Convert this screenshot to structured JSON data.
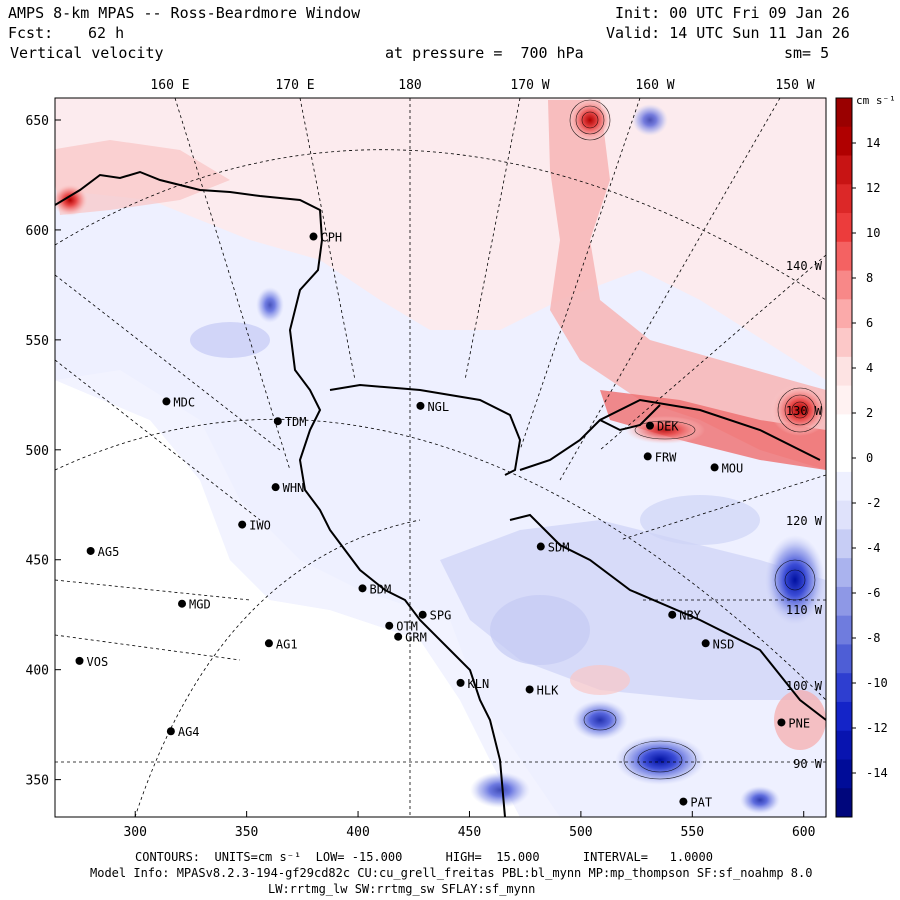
{
  "header": {
    "title": "AMPS 8-km MPAS -- Ross-Beardmore Window",
    "init": "Init: 00 UTC Fri 09 Jan 26",
    "fcst_label": "Fcst:",
    "fcst_value": "62 h",
    "valid": "Valid: 14 UTC Sun 11 Jan 26",
    "field": "Vertical velocity",
    "level": "at pressure =  700 hPa",
    "smooth": "sm= 5"
  },
  "map": {
    "lon_labels": [
      "160 E",
      "170 E",
      "180",
      "170 W",
      "160 W",
      "150 W"
    ],
    "y_ticks": [
      650,
      600,
      550,
      500,
      450,
      400,
      350
    ],
    "x_ticks": [
      300,
      350,
      400,
      450,
      500,
      550,
      600
    ],
    "x_range": [
      264,
      610
    ],
    "y_range": [
      333,
      660
    ],
    "inner_lon_labels": [
      "140 W",
      "130 W",
      "120 W",
      "110 W",
      "100 W",
      "90 W"
    ],
    "stations": [
      {
        "name": "CPH",
        "x": 380,
        "y": 597
      },
      {
        "name": "MDC",
        "x": 314,
        "y": 522
      },
      {
        "name": "TDM",
        "x": 364,
        "y": 513
      },
      {
        "name": "NGL",
        "x": 428,
        "y": 520
      },
      {
        "name": "WHN",
        "x": 363,
        "y": 483
      },
      {
        "name": "IWO",
        "x": 348,
        "y": 466
      },
      {
        "name": "AG5",
        "x": 280,
        "y": 454
      },
      {
        "name": "SDM",
        "x": 482,
        "y": 456
      },
      {
        "name": "BDM",
        "x": 402,
        "y": 437
      },
      {
        "name": "MGD",
        "x": 321,
        "y": 430
      },
      {
        "name": "SPG",
        "x": 429,
        "y": 425
      },
      {
        "name": "OTM",
        "x": 414,
        "y": 420
      },
      {
        "name": "GRM",
        "x": 418,
        "y": 415
      },
      {
        "name": "AG1",
        "x": 360,
        "y": 412
      },
      {
        "name": "VOS",
        "x": 275,
        "y": 404
      },
      {
        "name": "KLN",
        "x": 446,
        "y": 394
      },
      {
        "name": "HLK",
        "x": 477,
        "y": 391
      },
      {
        "name": "AG4",
        "x": 316,
        "y": 372
      },
      {
        "name": "FRW",
        "x": 530,
        "y": 497
      },
      {
        "name": "MOU",
        "x": 560,
        "y": 492
      },
      {
        "name": "DEK",
        "x": 531,
        "y": 511
      },
      {
        "name": "NBY",
        "x": 541,
        "y": 425
      },
      {
        "name": "NSD",
        "x": 556,
        "y": 412
      },
      {
        "name": "PNE",
        "x": 590,
        "y": 376
      },
      {
        "name": "PAT",
        "x": 546,
        "y": 340
      }
    ]
  },
  "colorbar": {
    "unit": "cm s⁻¹",
    "labels": [
      "14",
      "12",
      "10",
      "8",
      "6",
      "4",
      "2",
      "0",
      "-2",
      "-4",
      "-6",
      "-8",
      "-10",
      "-12",
      "-14"
    ],
    "colors": [
      "#9a0000",
      "#b00000",
      "#c81414",
      "#dc2828",
      "#ec3c3c",
      "#f46262",
      "#f88888",
      "#fbaaaa",
      "#fcc8c8",
      "#fde3e3",
      "#fff2f2",
      "#ffffff",
      "#ffffff",
      "#eef0ff",
      "#dfe2fb",
      "#c7cdf5",
      "#aab3ee",
      "#8e98e6",
      "#6f7cde",
      "#4e5ed6",
      "#2e3ed0",
      "#1424c8",
      "#0814b0",
      "#000c98",
      "#00067c"
    ]
  },
  "footer": {
    "contours": "CONTOURS:  UNITS=cm s⁻¹  LOW= -15.000      HIGH=  15.000      INTERVAL=   1.0000",
    "model_info": "Model Info: MPASv8.2.3-194-gf29cd82c CU:cu_grell_freitas PBL:bl_mynn MP:mp_thompson SF:sf_noahmp 8.0",
    "model_info2": "LW:rrtmg_lw SW:rrtmg_sw SFLAY:sf_mynn"
  }
}
